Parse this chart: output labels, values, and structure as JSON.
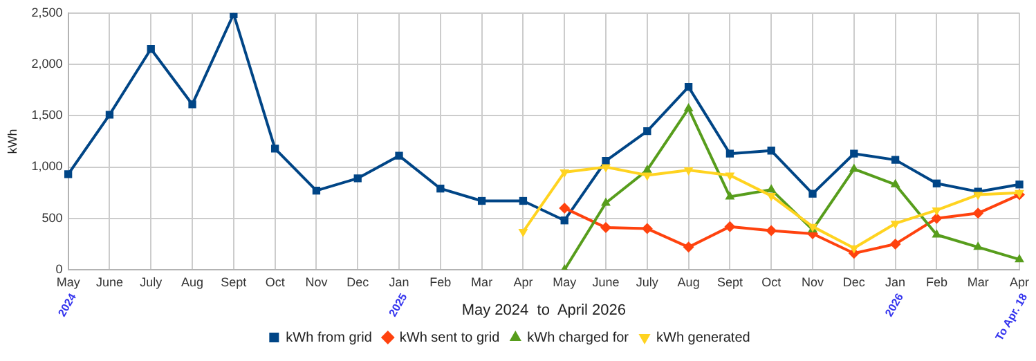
{
  "chart_data": {
    "type": "line",
    "xlabel": "May 2024  to  April 2026",
    "ylabel": "kWh",
    "categories": [
      "May",
      "June",
      "July",
      "Aug",
      "Sept",
      "Oct",
      "Nov",
      "Dec",
      "Jan",
      "Feb",
      "Mar",
      "Apr",
      "May",
      "June",
      "July",
      "Aug",
      "Sept",
      "Oct",
      "Nov",
      "Dec",
      "Jan",
      "Feb",
      "Mar",
      "Apr"
    ],
    "series": [
      {
        "name": "kWh from grid",
        "color": "#004586",
        "marker": "square",
        "values": [
          930,
          1510,
          2150,
          1610,
          2490,
          1180,
          770,
          890,
          1110,
          790,
          670,
          670,
          480,
          1060,
          1350,
          1780,
          1130,
          1160,
          740,
          1130,
          1070,
          840,
          760,
          830
        ]
      },
      {
        "name": "kWh sent to grid",
        "color": "#ff420e",
        "marker": "diamond",
        "values": [
          null,
          null,
          null,
          null,
          null,
          null,
          null,
          null,
          null,
          null,
          null,
          null,
          600,
          410,
          400,
          220,
          420,
          380,
          350,
          160,
          250,
          500,
          550,
          730
        ]
      },
      {
        "name": "kWh charged for",
        "color": "#579d1c",
        "marker": "triangle",
        "values": [
          null,
          null,
          null,
          null,
          null,
          null,
          null,
          null,
          null,
          null,
          null,
          null,
          0,
          650,
          970,
          1570,
          710,
          780,
          390,
          980,
          830,
          340,
          220,
          100
        ]
      },
      {
        "name": "kWh generated",
        "color": "#ffd320",
        "marker": "triangle-down",
        "values": [
          null,
          null,
          null,
          null,
          null,
          null,
          null,
          null,
          null,
          null,
          null,
          370,
          950,
          1000,
          920,
          970,
          920,
          720,
          420,
          210,
          450,
          580,
          730,
          750
        ]
      }
    ],
    "ylim": [
      0,
      2500
    ],
    "yticks": [
      0,
      {
        "value": 500,
        "label": "500"
      },
      {
        "value": 1000,
        "label": "1,000"
      },
      {
        "value": 1500,
        "label": "1,500"
      },
      {
        "value": 2000,
        "label": "2,000"
      },
      {
        "value": 2500,
        "label": "2,500"
      }
    ],
    "grid": true,
    "legend": "bottom",
    "line_style": "solid",
    "annotations": [
      "2024",
      "2025",
      "2026",
      "To Apr. 18"
    ]
  }
}
